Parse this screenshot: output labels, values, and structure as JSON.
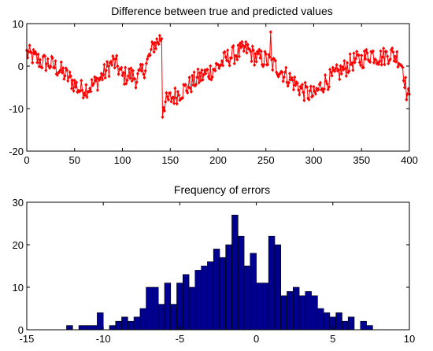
{
  "chart_data": [
    {
      "type": "line",
      "title": "Difference between true and predicted values",
      "xlim": [
        0,
        400
      ],
      "ylim": [
        -20,
        10
      ],
      "xticks": [
        0,
        50,
        100,
        150,
        200,
        250,
        300,
        350,
        400
      ],
      "yticks": [
        -20,
        -10,
        0,
        10
      ],
      "line_color": "#ff0000",
      "marker": "diamond",
      "anchors": [
        [
          0,
          3
        ],
        [
          8,
          2
        ],
        [
          15,
          1
        ],
        [
          25,
          0.5
        ],
        [
          35,
          -1
        ],
        [
          45,
          -3
        ],
        [
          55,
          -5.5
        ],
        [
          65,
          -5
        ],
        [
          72,
          -4
        ],
        [
          80,
          -2
        ],
        [
          90,
          1
        ],
        [
          95,
          0
        ],
        [
          100,
          -2.5
        ],
        [
          108,
          -2
        ],
        [
          115,
          -3
        ],
        [
          122,
          -1
        ],
        [
          128,
          2
        ],
        [
          133,
          5
        ],
        [
          138,
          6
        ],
        [
          141,
          7
        ],
        [
          143,
          -9
        ],
        [
          148,
          -8
        ],
        [
          158,
          -6.5
        ],
        [
          168,
          -5
        ],
        [
          178,
          -3
        ],
        [
          190,
          -1.5
        ],
        [
          200,
          0
        ],
        [
          210,
          2
        ],
        [
          220,
          3
        ],
        [
          230,
          4
        ],
        [
          240,
          2
        ],
        [
          250,
          1.5
        ],
        [
          260,
          0
        ],
        [
          265,
          -1
        ],
        [
          270,
          -2
        ],
        [
          280,
          -4
        ],
        [
          290,
          -6
        ],
        [
          300,
          -7
        ],
        [
          310,
          -4
        ],
        [
          320,
          -2.5
        ],
        [
          330,
          -1
        ],
        [
          340,
          1
        ],
        [
          350,
          1.5
        ],
        [
          360,
          3
        ],
        [
          370,
          2
        ],
        [
          380,
          3
        ],
        [
          388,
          2
        ],
        [
          393,
          0
        ],
        [
          397,
          -6
        ],
        [
          400,
          -8
        ]
      ]
    },
    {
      "type": "bar",
      "title": "Frequency of errors",
      "xlim": [
        -15,
        10
      ],
      "ylim": [
        0,
        30
      ],
      "xticks": [
        -15,
        -10,
        -5,
        0,
        5,
        10
      ],
      "yticks": [
        0,
        10,
        20,
        30
      ],
      "bar_color": "#00008f",
      "bin_width": 0.4,
      "bin_centers": [
        -12.2,
        -11.8,
        -11.4,
        -11.0,
        -10.6,
        -10.2,
        -9.8,
        -9.4,
        -9.0,
        -8.6,
        -8.2,
        -7.8,
        -7.4,
        -7.0,
        -6.6,
        -6.2,
        -5.8,
        -5.4,
        -5.0,
        -4.6,
        -4.2,
        -3.8,
        -3.4,
        -3.0,
        -2.6,
        -2.2,
        -1.8,
        -1.4,
        -1.0,
        -0.6,
        -0.2,
        0.2,
        0.6,
        1.0,
        1.4,
        1.8,
        2.2,
        2.6,
        3.0,
        3.4,
        3.8,
        4.2,
        4.6,
        5.0,
        5.4,
        5.8,
        6.2,
        6.6,
        7.0,
        7.4,
        7.8
      ],
      "values": [
        1,
        0,
        1,
        1,
        1,
        4,
        0,
        1,
        2,
        3,
        2,
        3,
        5,
        10,
        10,
        6,
        11,
        6,
        11,
        13,
        10,
        14,
        15,
        16,
        19,
        17,
        20,
        27,
        22,
        15,
        18,
        11,
        11,
        22,
        20,
        8,
        9,
        10,
        8,
        9,
        8,
        5,
        4,
        3,
        4,
        2,
        3,
        0,
        2,
        1,
        0
      ]
    }
  ]
}
